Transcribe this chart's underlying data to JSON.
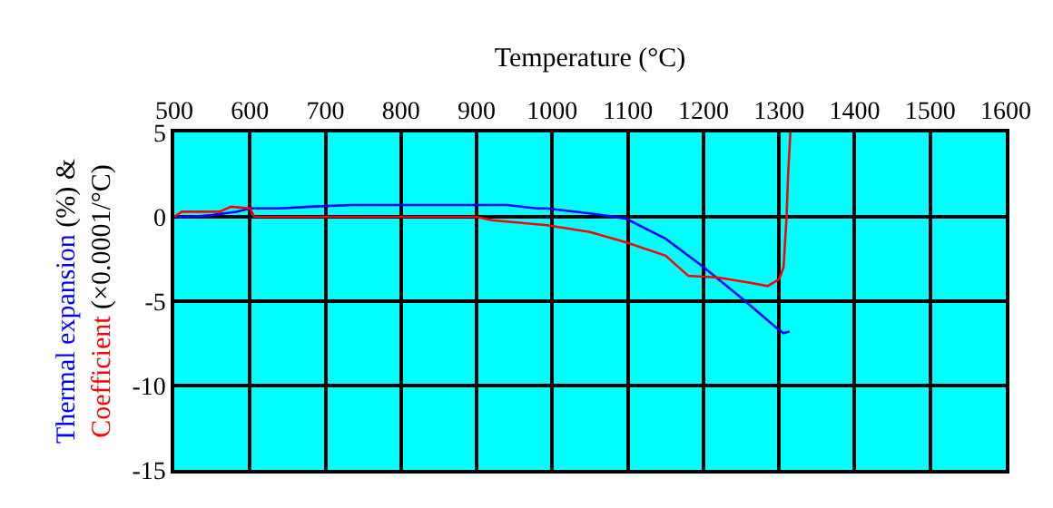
{
  "chart_data": {
    "type": "line",
    "xlabel": "Temperature (°C)",
    "ylabel": [
      "Thermal expansion (%) &",
      "Coefficient (×0.0001/°C)"
    ],
    "series": [
      {
        "color": "#0000ff",
        "x": [
          500,
          522,
          550,
          582,
          600,
          640,
          679,
          735,
          800,
          900,
          940,
          980,
          993,
          1050,
          1097,
          1150,
          1198,
          1250,
          1300,
          1306,
          1314
        ],
        "values": [
          0,
          0,
          0.1,
          0.3,
          0.5,
          0.5,
          0.6,
          0.7,
          0.7,
          0.7,
          0.7,
          0.5,
          0.5,
          0.2,
          -0.1,
          -1.3,
          -2.9,
          -4.8,
          -6.7,
          -6.9,
          -6.8
        ]
      },
      {
        "color": "#ff0000",
        "x": [
          500,
          510,
          560,
          575,
          600,
          606,
          700,
          800,
          900,
          920,
          993,
          1050,
          1097,
          1150,
          1180,
          1220,
          1260,
          1285,
          1300,
          1306,
          1310,
          1312,
          1315
        ],
        "values": [
          0,
          0.3,
          0.3,
          0.6,
          0.5,
          0,
          0,
          0,
          0,
          -0.2,
          -0.5,
          -0.9,
          -1.5,
          -2.3,
          -3.5,
          -3.6,
          -3.9,
          -4.1,
          -3.7,
          -3.0,
          0,
          2.5,
          5
        ]
      }
    ],
    "xlim": [
      500,
      1600
    ],
    "xticks": [
      500,
      600,
      700,
      800,
      900,
      1000,
      1100,
      1200,
      1300,
      1400,
      1500,
      1600
    ],
    "ylim": [
      -15,
      5
    ],
    "yticks": [
      -15,
      -10,
      -5,
      0,
      5
    ],
    "grid": true,
    "marker": "none",
    "line_style": "solid"
  }
}
